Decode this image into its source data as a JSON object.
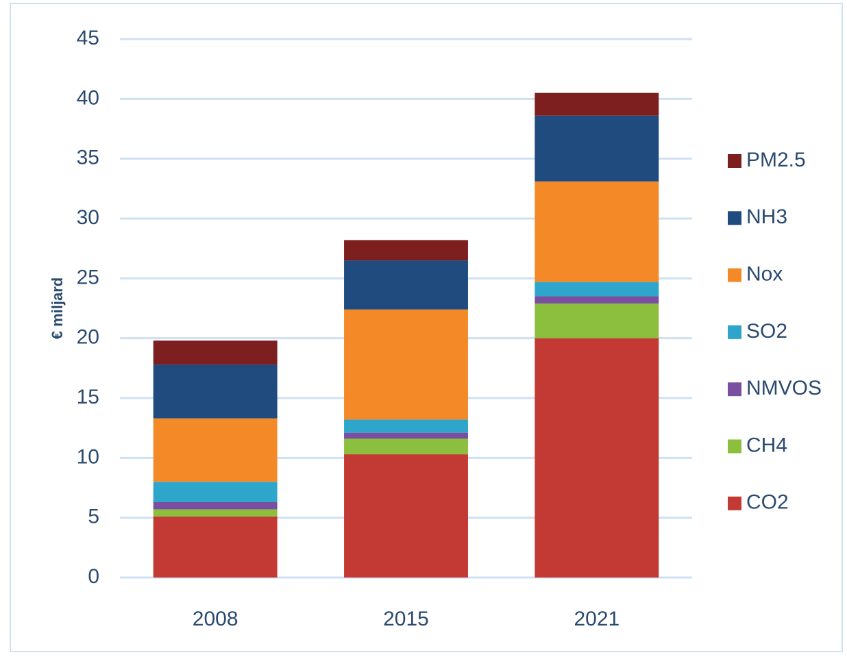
{
  "chart_data": {
    "type": "stacked_bar",
    "y_label": "€ miljard",
    "categories": [
      "2008",
      "2015",
      "2021"
    ],
    "series": [
      {
        "name": "CO2",
        "color": "#c23a33",
        "values": [
          5.1,
          10.3,
          20
        ]
      },
      {
        "name": "CH4",
        "color": "#8dbf3e",
        "values": [
          0.6,
          1.3,
          2.9
        ]
      },
      {
        "name": "NMVOS",
        "color": "#7a4ea0",
        "values": [
          0.6,
          0.5,
          0.6
        ]
      },
      {
        "name": "SO2",
        "color": "#2ea6cb",
        "values": [
          1.7,
          1.1,
          1.2
        ]
      },
      {
        "name": "Nox",
        "color": "#f48a27",
        "values": [
          5.3,
          9.2,
          8.4
        ]
      },
      {
        "name": "NH3",
        "color": "#1f4b7f",
        "values": [
          4.5,
          4.1,
          5.5
        ]
      },
      {
        "name": "PM2.5",
        "color": "#7c1f1e",
        "values": [
          2.0,
          1.7,
          1.9
        ]
      }
    ],
    "ylim": [
      0,
      45
    ],
    "yticks": [
      0,
      5,
      10,
      15,
      20,
      25,
      30,
      35,
      40,
      45
    ],
    "grid": true,
    "legend": "right"
  }
}
